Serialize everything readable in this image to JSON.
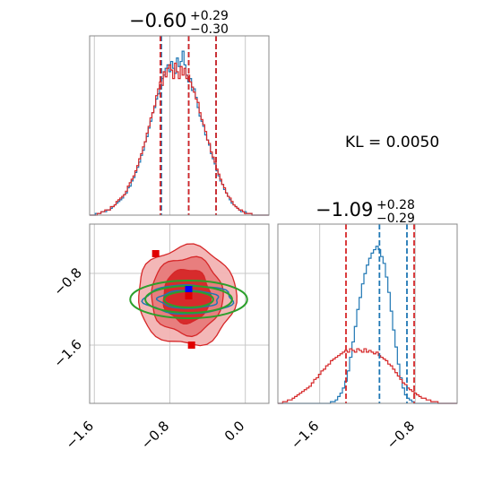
{
  "colors": {
    "blue": "#1f77b4",
    "red": "#d62728",
    "green": "#2ca02c",
    "light_red": "#f2b3b3",
    "mid_red": "#e77a7a",
    "marker_blue": "#0000ff",
    "marker_red": "#e00000",
    "grid": "#c8c8c8",
    "frame": "#888888"
  },
  "kl_text": "KL = 0.0050",
  "chart_data": [
    {
      "type": "histogram",
      "panel": "top-left",
      "title": {
        "main": "−0.60",
        "sup": "+0.29",
        "sub": "−0.30"
      },
      "xlim": [
        -1.65,
        0.25
      ],
      "ylim": [
        0,
        1.05
      ],
      "bin_start": -1.65,
      "bin_width": 0.02,
      "series": [
        {
          "color_key": "blue",
          "values": [
            0.0,
            0.0,
            0.0,
            0.01,
            0.01,
            0.01,
            0.02,
            0.02,
            0.02,
            0.03,
            0.03,
            0.04,
            0.05,
            0.06,
            0.07,
            0.08,
            0.09,
            0.1,
            0.12,
            0.13,
            0.16,
            0.17,
            0.2,
            0.22,
            0.25,
            0.28,
            0.31,
            0.35,
            0.38,
            0.43,
            0.46,
            0.51,
            0.55,
            0.6,
            0.63,
            0.68,
            0.71,
            0.76,
            0.8,
            0.82,
            0.86,
            0.88,
            0.84,
            0.9,
            0.86,
            0.83,
            0.92,
            0.87,
            0.9,
            0.96,
            0.88,
            0.82,
            0.78,
            0.8,
            0.73,
            0.74,
            0.69,
            0.63,
            0.58,
            0.55,
            0.52,
            0.47,
            0.44,
            0.41,
            0.36,
            0.33,
            0.3,
            0.26,
            0.23,
            0.2,
            0.18,
            0.15,
            0.13,
            0.11,
            0.09,
            0.07,
            0.06,
            0.05,
            0.04,
            0.03,
            0.02,
            0.02,
            0.02,
            0.01,
            0.01,
            0.01,
            0.0,
            0.0,
            0.0,
            0.0,
            0.0,
            0.0,
            0.0,
            0.0,
            0.0
          ]
        },
        {
          "color_key": "red",
          "values": [
            0.0,
            0.0,
            0.0,
            0.0,
            0.01,
            0.01,
            0.02,
            0.02,
            0.03,
            0.03,
            0.03,
            0.05,
            0.05,
            0.06,
            0.08,
            0.09,
            0.1,
            0.11,
            0.12,
            0.14,
            0.17,
            0.19,
            0.21,
            0.23,
            0.26,
            0.29,
            0.33,
            0.36,
            0.4,
            0.43,
            0.48,
            0.52,
            0.57,
            0.6,
            0.64,
            0.7,
            0.74,
            0.78,
            0.76,
            0.84,
            0.81,
            0.86,
            0.88,
            0.85,
            0.8,
            0.89,
            0.84,
            0.8,
            0.87,
            0.82,
            0.86,
            0.8,
            0.82,
            0.78,
            0.75,
            0.72,
            0.68,
            0.66,
            0.6,
            0.56,
            0.53,
            0.49,
            0.44,
            0.42,
            0.37,
            0.34,
            0.31,
            0.27,
            0.24,
            0.21,
            0.18,
            0.16,
            0.13,
            0.11,
            0.1,
            0.08,
            0.06,
            0.05,
            0.04,
            0.03,
            0.03,
            0.02,
            0.01,
            0.01,
            0.01,
            0.01,
            0.0,
            0.0,
            0.0,
            0.0,
            0.0,
            0.0,
            0.0,
            0.0,
            0.0
          ]
        }
      ],
      "quantiles": [
        {
          "color_key": "blue",
          "x": [
            -0.89,
            -0.6,
            -0.31
          ]
        },
        {
          "color_key": "red",
          "x": [
            -0.9,
            -0.6,
            -0.31
          ]
        }
      ],
      "gridlines_x": [
        -1.6,
        -0.8,
        0.0
      ]
    },
    {
      "type": "histogram",
      "panel": "bottom-right",
      "title": {
        "main": "−1.09",
        "sup": "+0.28",
        "sub": "−0.29"
      },
      "xlim": [
        -1.95,
        -0.45
      ],
      "ylim": [
        0,
        1.05
      ],
      "bin_start": -1.95,
      "bin_width": 0.02,
      "series": [
        {
          "color_key": "blue",
          "values": [
            0.0,
            0.0,
            0.0,
            0.0,
            0.0,
            0.0,
            0.0,
            0.0,
            0.0,
            0.0,
            0.0,
            0.0,
            0.0,
            0.0,
            0.0,
            0.0,
            0.0,
            0.0,
            0.0,
            0.0,
            0.0,
            0.0,
            0.01,
            0.01,
            0.02,
            0.04,
            0.06,
            0.09,
            0.13,
            0.19,
            0.27,
            0.36,
            0.45,
            0.55,
            0.62,
            0.7,
            0.76,
            0.81,
            0.85,
            0.88,
            0.9,
            0.92,
            0.9,
            0.86,
            0.82,
            0.74,
            0.65,
            0.54,
            0.43,
            0.33,
            0.23,
            0.15,
            0.09,
            0.05,
            0.03,
            0.02,
            0.01,
            0.0,
            0.0,
            0.0,
            0.0,
            0.0,
            0.0,
            0.0,
            0.0,
            0.0,
            0.0,
            0.0,
            0.0,
            0.0,
            0.0,
            0.0,
            0.0,
            0.0,
            0.0
          ]
        },
        {
          "color_key": "red",
          "values": [
            0.0,
            0.0,
            0.01,
            0.01,
            0.02,
            0.02,
            0.03,
            0.04,
            0.05,
            0.06,
            0.07,
            0.08,
            0.09,
            0.1,
            0.12,
            0.14,
            0.15,
            0.17,
            0.19,
            0.2,
            0.22,
            0.23,
            0.25,
            0.26,
            0.27,
            0.28,
            0.29,
            0.3,
            0.31,
            0.3,
            0.32,
            0.31,
            0.3,
            0.32,
            0.31,
            0.3,
            0.32,
            0.3,
            0.31,
            0.3,
            0.29,
            0.3,
            0.28,
            0.27,
            0.26,
            0.25,
            0.23,
            0.22,
            0.2,
            0.18,
            0.16,
            0.14,
            0.12,
            0.11,
            0.09,
            0.08,
            0.07,
            0.06,
            0.05,
            0.04,
            0.03,
            0.03,
            0.02,
            0.02,
            0.01,
            0.01,
            0.01,
            0.0,
            0.0,
            0.0,
            0.0,
            0.0,
            0.0,
            0.0,
            0.0
          ]
        }
      ],
      "quantiles": [
        {
          "color_key": "blue",
          "x": [
            -1.1,
            -0.87
          ]
        },
        {
          "color_key": "red",
          "x": [
            -1.38,
            -0.81
          ]
        }
      ],
      "gridlines_x": [
        -1.6,
        -0.8
      ],
      "xticks": [
        "−1.6",
        "−0.8"
      ]
    },
    {
      "type": "contour",
      "panel": "bottom-left",
      "xlim": [
        -1.65,
        0.25
      ],
      "ylim": [
        -2.25,
        -0.25
      ],
      "xticks": [
        {
          "value": -1.6,
          "label": "−1.6"
        },
        {
          "value": -0.8,
          "label": "−0.8"
        },
        {
          "value": 0.0,
          "label": "0.0"
        }
      ],
      "yticks": [
        {
          "value": -0.8,
          "label": "−0.8"
        },
        {
          "value": -1.6,
          "label": "−1.6"
        }
      ],
      "red_contours": {
        "center": [
          -0.62,
          -1.05
        ],
        "levels": [
          {
            "rx": 0.52,
            "ry": 0.55,
            "fill_key": "light_red"
          },
          {
            "rx": 0.38,
            "ry": 0.43,
            "fill_key": "mid_red"
          },
          {
            "rx": 0.25,
            "ry": 0.3,
            "fill_key": "red"
          }
        ]
      },
      "blue_contours": {
        "center": [
          -0.6,
          -1.09
        ],
        "levels": [
          {
            "rx": 0.47,
            "ry": 0.16
          },
          {
            "rx": 0.32,
            "ry": 0.1
          }
        ]
      },
      "green_ellipses": {
        "center": [
          -0.6,
          -1.09
        ],
        "levels": [
          {
            "rx": 0.62,
            "ry": 0.21
          },
          {
            "rx": 0.46,
            "ry": 0.15
          },
          {
            "rx": 0.26,
            "ry": 0.09
          }
        ]
      },
      "markers": [
        {
          "color_key": "marker_blue",
          "x": -0.6,
          "y": -0.98
        },
        {
          "color_key": "marker_red",
          "x": -0.6,
          "y": -1.05
        },
        {
          "color_key": "marker_red",
          "x": -0.95,
          "y": -0.58
        },
        {
          "color_key": "marker_red",
          "x": -0.57,
          "y": -1.6
        }
      ],
      "gridlines_x": [
        -1.6,
        -0.8,
        0.0
      ],
      "gridlines_y": [
        -0.8,
        -1.6
      ]
    }
  ]
}
